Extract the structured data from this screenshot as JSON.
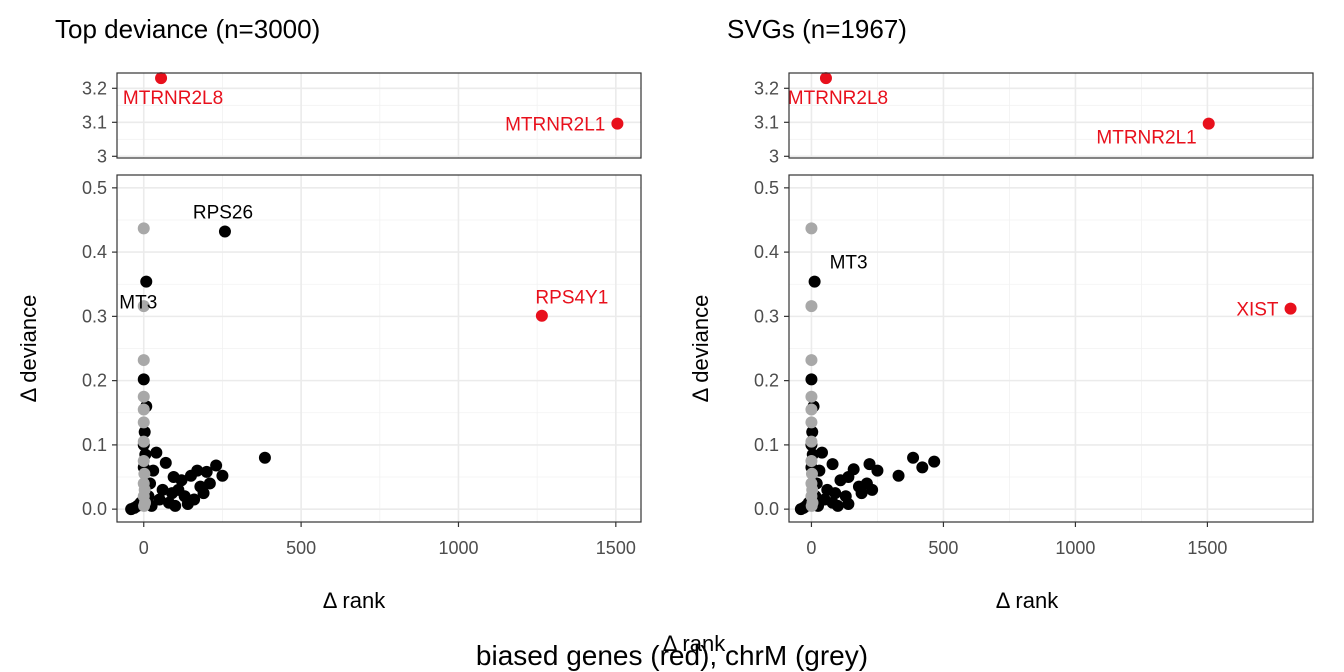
{
  "figure": {
    "caption": "biased genes (red), chrM (grey)",
    "overlay_label": "Δ rank"
  },
  "colors": {
    "default_point": "#000000",
    "biased_gene": "#e8101c",
    "chrM": "#a8a8a8",
    "grid": "#ebebeb",
    "border": "#333333"
  },
  "chart_data": [
    {
      "type": "scatter",
      "title": "Top deviance (n=3000)",
      "xlabel": "Δ rank",
      "ylabel": "Δ deviance",
      "broken_y_axis": true,
      "xlim": [
        -85,
        1580
      ],
      "x_ticks": [
        0,
        500,
        1000,
        1500
      ],
      "x_tick_labels": [
        "0",
        "500",
        "1000",
        "1500"
      ],
      "ylim_lower": [
        -0.02,
        0.52
      ],
      "y_ticks_lower": [
        0.0,
        0.1,
        0.2,
        0.3,
        0.4,
        0.5
      ],
      "y_tick_labels_lower": [
        "0.0",
        "0.1",
        "0.2",
        "0.3",
        "0.4",
        "0.5"
      ],
      "ylim_upper": [
        2.995,
        3.245
      ],
      "y_ticks_upper": [
        3.0,
        3.1,
        3.2
      ],
      "y_tick_labels_upper": [
        "3",
        "3.1",
        "3.2"
      ],
      "grid": true,
      "labeled_points": [
        {
          "label": "MTRNR2L8",
          "x": 55,
          "y": 3.23,
          "group": "biased"
        },
        {
          "label": "MTRNR2L1",
          "x": 1505,
          "y": 3.096,
          "group": "biased"
        },
        {
          "label": "RPS4Y1",
          "x": 1265,
          "y": 0.301,
          "group": "biased"
        },
        {
          "label": "RPS26",
          "x": 258,
          "y": 0.432,
          "group": "other"
        },
        {
          "label": "MT3",
          "x": 8,
          "y": 0.354,
          "group": "other"
        }
      ],
      "chrM_points": [
        {
          "x": 0,
          "y": 0.437
        },
        {
          "x": 0,
          "y": 0.316
        },
        {
          "x": 0,
          "y": 0.232
        },
        {
          "x": 0,
          "y": 0.175
        },
        {
          "x": 0,
          "y": 0.155
        },
        {
          "x": 0,
          "y": 0.135
        },
        {
          "x": 0,
          "y": 0.105
        },
        {
          "x": 0,
          "y": 0.075
        },
        {
          "x": 2,
          "y": 0.055
        },
        {
          "x": 0,
          "y": 0.04
        },
        {
          "x": 3,
          "y": 0.03
        },
        {
          "x": 0,
          "y": 0.02
        },
        {
          "x": 4,
          "y": 0.01
        },
        {
          "x": 1,
          "y": 0.005
        }
      ],
      "other_points": [
        {
          "x": 0,
          "y": 0.202
        },
        {
          "x": 8,
          "y": 0.16
        },
        {
          "x": 3,
          "y": 0.12
        },
        {
          "x": 0,
          "y": 0.1
        },
        {
          "x": 5,
          "y": 0.085
        },
        {
          "x": 0,
          "y": 0.065
        },
        {
          "x": 385,
          "y": 0.08
        },
        {
          "x": 230,
          "y": 0.068
        },
        {
          "x": 250,
          "y": 0.052
        },
        {
          "x": 200,
          "y": 0.058
        },
        {
          "x": 170,
          "y": 0.06
        },
        {
          "x": 150,
          "y": 0.052
        },
        {
          "x": 120,
          "y": 0.045
        },
        {
          "x": 95,
          "y": 0.05
        },
        {
          "x": 70,
          "y": 0.072
        },
        {
          "x": 40,
          "y": 0.088
        },
        {
          "x": 30,
          "y": 0.06
        },
        {
          "x": 20,
          "y": 0.04
        },
        {
          "x": 60,
          "y": 0.03
        },
        {
          "x": 90,
          "y": 0.025
        },
        {
          "x": 130,
          "y": 0.02
        },
        {
          "x": 180,
          "y": 0.035
        },
        {
          "x": 210,
          "y": 0.04
        },
        {
          "x": 110,
          "y": 0.03
        },
        {
          "x": 50,
          "y": 0.015
        },
        {
          "x": 15,
          "y": 0.02
        },
        {
          "x": -10,
          "y": 0.01
        },
        {
          "x": -20,
          "y": 0.005
        },
        {
          "x": -40,
          "y": 0.0
        },
        {
          "x": -30,
          "y": 0.002
        },
        {
          "x": 80,
          "y": 0.01
        },
        {
          "x": 140,
          "y": 0.008
        },
        {
          "x": 100,
          "y": 0.005
        },
        {
          "x": 25,
          "y": 0.005
        },
        {
          "x": 160,
          "y": 0.015
        },
        {
          "x": 190,
          "y": 0.025
        }
      ]
    },
    {
      "type": "scatter",
      "title": "SVGs (n=1967)",
      "xlabel": "Δ rank",
      "ylabel": "Δ deviance",
      "broken_y_axis": true,
      "xlim": [
        -85,
        1900
      ],
      "x_ticks": [
        0,
        500,
        1000,
        1500
      ],
      "x_tick_labels": [
        "0",
        "500",
        "1000",
        "1500"
      ],
      "ylim_lower": [
        -0.02,
        0.52
      ],
      "y_ticks_lower": [
        0.0,
        0.1,
        0.2,
        0.3,
        0.4,
        0.5
      ],
      "y_tick_labels_lower": [
        "0.0",
        "0.1",
        "0.2",
        "0.3",
        "0.4",
        "0.5"
      ],
      "ylim_upper": [
        2.995,
        3.245
      ],
      "y_ticks_upper": [
        3.0,
        3.1,
        3.2
      ],
      "y_tick_labels_upper": [
        "3",
        "3.1",
        "3.2"
      ],
      "grid": true,
      "labeled_points": [
        {
          "label": "MTRNR2L8",
          "x": 55,
          "y": 3.23,
          "group": "biased"
        },
        {
          "label": "MTRNR2L1",
          "x": 1505,
          "y": 3.096,
          "group": "biased"
        },
        {
          "label": "XIST",
          "x": 1815,
          "y": 0.312,
          "group": "biased"
        },
        {
          "label": "MT3",
          "x": 12,
          "y": 0.354,
          "group": "other"
        }
      ],
      "chrM_points": [
        {
          "x": 0,
          "y": 0.437
        },
        {
          "x": 0,
          "y": 0.316
        },
        {
          "x": 0,
          "y": 0.232
        },
        {
          "x": 0,
          "y": 0.175
        },
        {
          "x": 0,
          "y": 0.155
        },
        {
          "x": 0,
          "y": 0.135
        },
        {
          "x": 0,
          "y": 0.105
        },
        {
          "x": 0,
          "y": 0.075
        },
        {
          "x": 2,
          "y": 0.055
        },
        {
          "x": 0,
          "y": 0.04
        },
        {
          "x": 3,
          "y": 0.03
        },
        {
          "x": 0,
          "y": 0.02
        },
        {
          "x": 4,
          "y": 0.01
        },
        {
          "x": 1,
          "y": 0.005
        }
      ],
      "other_points": [
        {
          "x": 0,
          "y": 0.202
        },
        {
          "x": 8,
          "y": 0.16
        },
        {
          "x": 3,
          "y": 0.12
        },
        {
          "x": 0,
          "y": 0.1
        },
        {
          "x": 5,
          "y": 0.085
        },
        {
          "x": 0,
          "y": 0.065
        },
        {
          "x": 385,
          "y": 0.08
        },
        {
          "x": 420,
          "y": 0.065
        },
        {
          "x": 465,
          "y": 0.074
        },
        {
          "x": 330,
          "y": 0.052
        },
        {
          "x": 220,
          "y": 0.07
        },
        {
          "x": 250,
          "y": 0.06
        },
        {
          "x": 160,
          "y": 0.062
        },
        {
          "x": 140,
          "y": 0.05
        },
        {
          "x": 110,
          "y": 0.045
        },
        {
          "x": 80,
          "y": 0.07
        },
        {
          "x": 40,
          "y": 0.088
        },
        {
          "x": 30,
          "y": 0.06
        },
        {
          "x": 20,
          "y": 0.04
        },
        {
          "x": 60,
          "y": 0.03
        },
        {
          "x": 90,
          "y": 0.025
        },
        {
          "x": 130,
          "y": 0.02
        },
        {
          "x": 180,
          "y": 0.035
        },
        {
          "x": 210,
          "y": 0.04
        },
        {
          "x": 230,
          "y": 0.03
        },
        {
          "x": 50,
          "y": 0.015
        },
        {
          "x": 15,
          "y": 0.02
        },
        {
          "x": -10,
          "y": 0.01
        },
        {
          "x": -20,
          "y": 0.005
        },
        {
          "x": -40,
          "y": 0.0
        },
        {
          "x": -30,
          "y": 0.002
        },
        {
          "x": 80,
          "y": 0.01
        },
        {
          "x": 140,
          "y": 0.008
        },
        {
          "x": 100,
          "y": 0.005
        },
        {
          "x": 25,
          "y": 0.005
        },
        {
          "x": 190,
          "y": 0.025
        }
      ]
    }
  ]
}
